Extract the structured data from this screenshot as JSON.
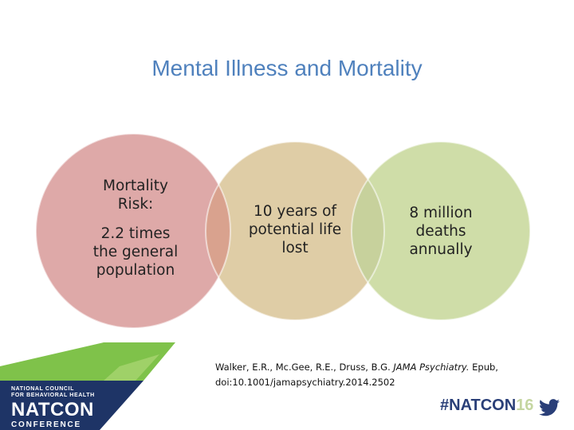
{
  "slide": {
    "title": "Mental Illness and Mortality"
  },
  "circles": [
    {
      "lines": [
        "Mortality Risk:",
        "2.2 times the general population"
      ],
      "color": "#dea9a8"
    },
    {
      "lines": [
        "10 years of potential life lost"
      ],
      "color": "#dfcda6"
    },
    {
      "lines": [
        "8 million deaths annually"
      ],
      "color": "#cfdda8"
    }
  ],
  "citation": {
    "authors": "Walker, E.R., Mc.Gee, R.E., Druss, B.G.",
    "journal": "JAMA Psychiatry.",
    "epub": "Epub,",
    "doi": "doi:10.1001/jamapsychiatry.2014.2502"
  },
  "footer": {
    "logo": {
      "line1": "NATIONAL COUNCIL",
      "line2": "FOR BEHAVIORAL HEALTH",
      "line3": "NATCON",
      "line4": "CONFERENCE"
    },
    "hashtag": "#NATCON",
    "hashtag_year": "16",
    "twitter_icon": "twitter-bird-icon"
  },
  "colors": {
    "title": "#4f81bd",
    "overlap_left": "#d9a28e",
    "overlap_right": "#c7d19c",
    "logo_green": "#7fc24a",
    "logo_navy": "#1e3466"
  }
}
